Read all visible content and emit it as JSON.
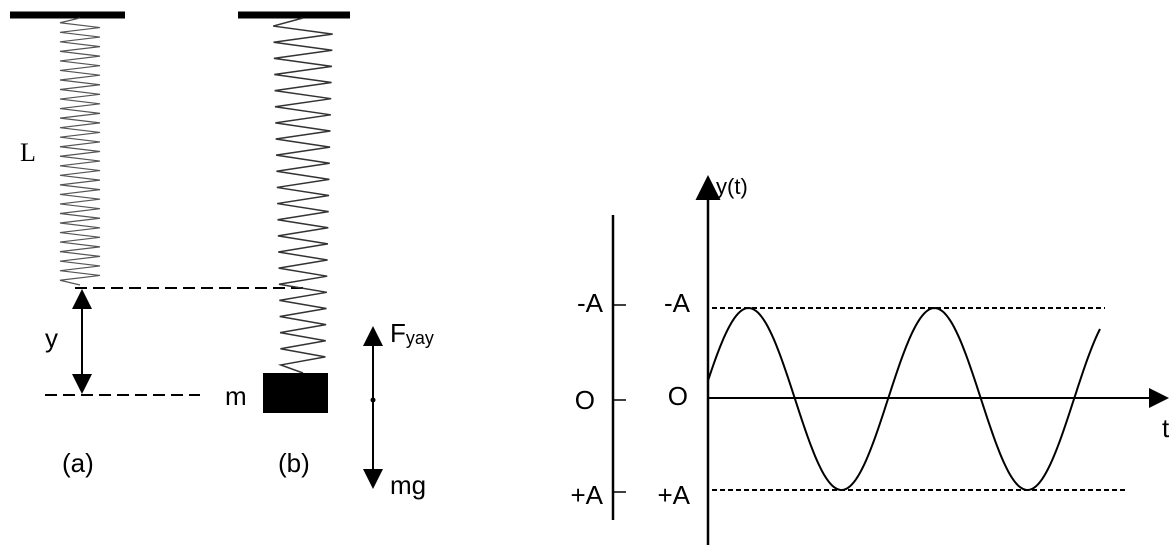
{
  "spring_a": {
    "length_label": "L",
    "extension_label": "y",
    "caption": "(a)"
  },
  "spring_b": {
    "mass_label": "m",
    "caption": "(b)",
    "force_up": {
      "symbol": "F",
      "subscript": "yay"
    },
    "force_down": "mg"
  },
  "graph": {
    "y_axis_label": "y(t)",
    "x_axis_label": "t",
    "left_scale": [
      "-A",
      "O",
      "+A"
    ],
    "right_scale": [
      "-A",
      "O",
      "+A"
    ]
  }
}
